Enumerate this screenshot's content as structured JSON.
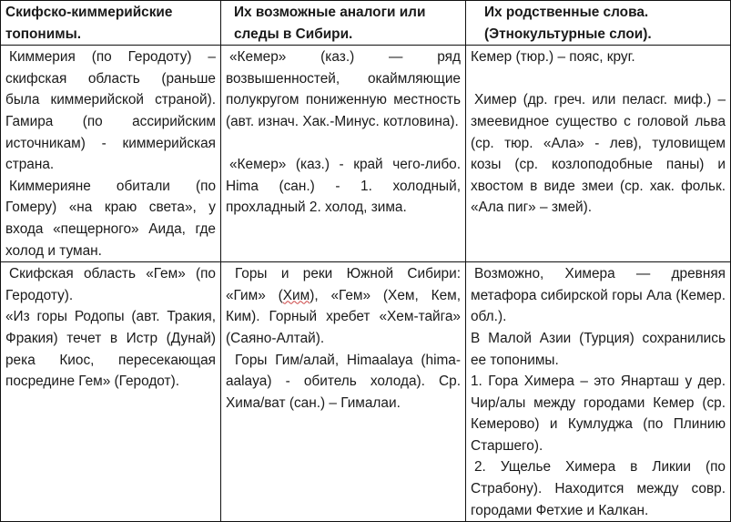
{
  "headers": [
    "Скифско-киммерийские топонимы.",
    "Их возможные  аналоги или следы в Сибири.",
    "Их родственные слова. (Этнокультурные слои)."
  ],
  "rows": [
    {
      "col1": [
        "Киммерия (по Геродоту) – скифская область (раньше была киммерийской страной). Гамира (по ассирийским источникам) - киммерийская страна.",
        "Киммерияне обитали (по Гомеру)  «на краю света», у входа «пещерного» Аида, где холод и туман."
      ],
      "col2": [
        "«Кемер» (каз.) — ряд возвышенностей, окаймляющие полукругом пониженную местность (авт. изнач. Хак.-Минус. котловина).",
        "«Кемер» (каз.) - край чего-либо. Hima (сан.) -  1. холодный, прохладный 2. холод, зима."
      ],
      "col3": [
        "Кемер (тюр.) – пояс, круг.",
        "Химер (др. греч. или пеласг. миф.) – змеевидное существо с головой льва (ср. тюр. «Ала» - лев), туловищем козы (ср. козлоподобные паны) и хвостом в виде змеи (ср. хак. фольк. «Ала пиг» – змей)."
      ]
    },
    {
      "col1": [
        "Скифская область «Гем» (по Геродоту).",
        "«Из горы Родопы (авт. Тракия, Фракия) течет в Истр (Дунай) река Киос, пересекающая посредине Гем» (Геродот)."
      ],
      "col2": {
        "p1_before": "Горы и реки Южной Сибири: «Гим» (",
        "p1_underlined": "Хим",
        "p1_after": "), «Гем» (Хем, Кем, Ким). Горный хребет «Хем-тайга» (Саяно-Алтай).",
        "p2": "Горы Гим/алай, Himaalaya (hima-aalaya) - обитель холода). Ср. Хима/ват (сан.) – Гималаи."
      },
      "col3": [
        "Возможно, Химера — древняя метафора сибирской горы Ала (Кемер. обл.).",
        "В Малой Азии (Турция) сохранились ее топонимы.",
        "1. Гора Химера – это Янарташ у дер. Чир/алы  между городами Кемер (ср. Кемерово) и Кумлуджа (по Плинию Старшего).",
        "2. Ущелье Химера в Ликии (по Страбону). Находится между совр. городами Фетхие и Калкан."
      ]
    }
  ]
}
